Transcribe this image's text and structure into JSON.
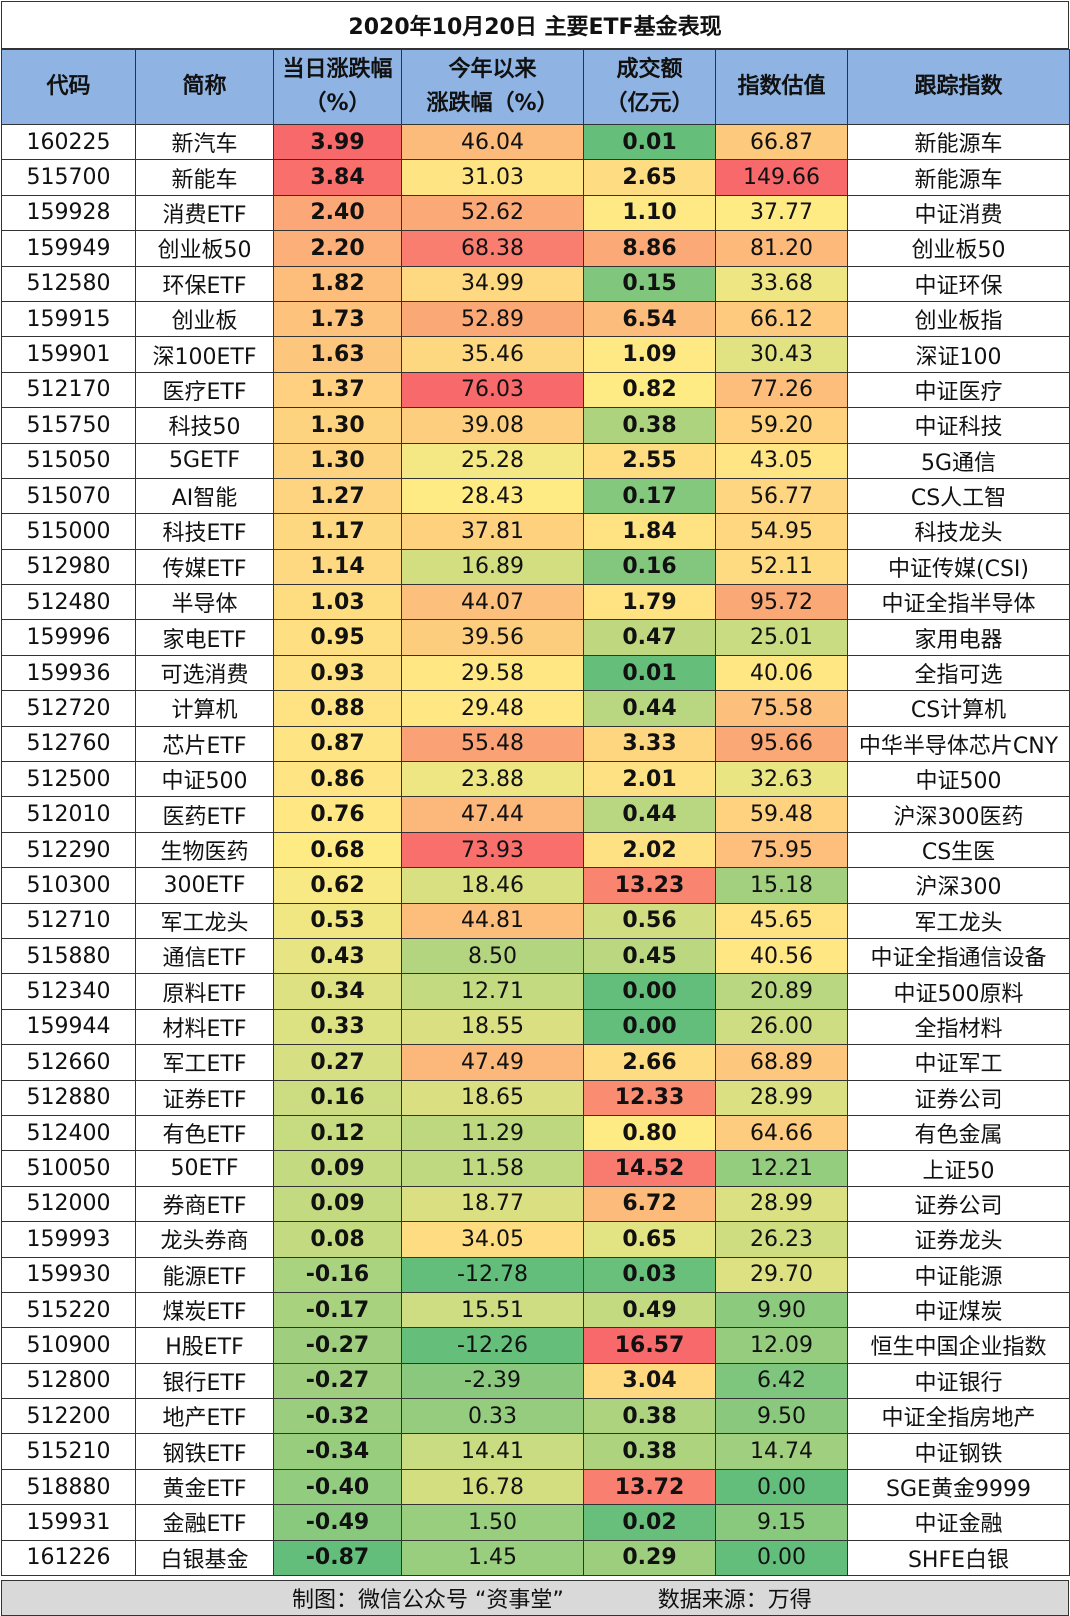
{
  "title": "2020年10月20日 主要ETF基金表现",
  "headers": [
    "代码",
    "简称",
    {
      "l1": "当日涨跌幅",
      "l2": "（%）"
    },
    {
      "l1": "今年以来",
      "l2": "涨跌幅（%）"
    },
    {
      "l1": "成交额",
      "l2": "（亿元）"
    },
    "指数估值",
    "跟踪指数"
  ],
  "heat_colors": {
    "low": "#63be7b",
    "mid": "#ffeb84",
    "high": "#f8696b"
  },
  "header_color": "#8fb4e3",
  "rows": [
    [
      "160225",
      "新汽车",
      "3.99",
      "46.04",
      "0.01",
      "66.87",
      "新能源车"
    ],
    [
      "515700",
      "新能车",
      "3.84",
      "31.03",
      "2.65",
      "149.66",
      "新能源车"
    ],
    [
      "159928",
      "消费ETF",
      "2.40",
      "52.62",
      "1.10",
      "37.77",
      "中证消费"
    ],
    [
      "159949",
      "创业板50",
      "2.20",
      "68.38",
      "8.86",
      "81.20",
      "创业板50"
    ],
    [
      "512580",
      "环保ETF",
      "1.82",
      "34.99",
      "0.15",
      "33.68",
      "中证环保"
    ],
    [
      "159915",
      "创业板",
      "1.73",
      "52.89",
      "6.54",
      "66.12",
      "创业板指"
    ],
    [
      "159901",
      "深100ETF",
      "1.63",
      "35.46",
      "1.09",
      "30.43",
      "深证100"
    ],
    [
      "512170",
      "医疗ETF",
      "1.37",
      "76.03",
      "0.82",
      "77.26",
      "中证医疗"
    ],
    [
      "515750",
      "科技50",
      "1.30",
      "39.08",
      "0.38",
      "59.20",
      "中证科技"
    ],
    [
      "515050",
      "5GETF",
      "1.30",
      "25.28",
      "2.55",
      "43.05",
      "5G通信"
    ],
    [
      "515070",
      "AI智能",
      "1.27",
      "28.43",
      "0.17",
      "56.77",
      "CS人工智"
    ],
    [
      "515000",
      "科技ETF",
      "1.17",
      "37.81",
      "1.84",
      "54.95",
      "科技龙头"
    ],
    [
      "512980",
      "传媒ETF",
      "1.14",
      "16.89",
      "0.16",
      "52.11",
      "中证传媒(CSI)"
    ],
    [
      "512480",
      "半导体",
      "1.03",
      "44.07",
      "1.79",
      "95.72",
      "中证全指半导体"
    ],
    [
      "159996",
      "家电ETF",
      "0.95",
      "39.56",
      "0.47",
      "25.01",
      "家用电器"
    ],
    [
      "159936",
      "可选消费",
      "0.93",
      "29.58",
      "0.01",
      "40.06",
      "全指可选"
    ],
    [
      "512720",
      "计算机",
      "0.88",
      "29.48",
      "0.44",
      "75.58",
      "CS计算机"
    ],
    [
      "512760",
      "芯片ETF",
      "0.87",
      "55.48",
      "3.33",
      "95.66",
      "中华半导体芯片CNY"
    ],
    [
      "512500",
      "中证500",
      "0.86",
      "23.88",
      "2.01",
      "32.63",
      "中证500"
    ],
    [
      "512010",
      "医药ETF",
      "0.76",
      "47.44",
      "0.44",
      "59.48",
      "沪深300医药"
    ],
    [
      "512290",
      "生物医药",
      "0.68",
      "73.93",
      "2.02",
      "75.95",
      "CS生医"
    ],
    [
      "510300",
      "300ETF",
      "0.62",
      "18.46",
      "13.23",
      "15.18",
      "沪深300"
    ],
    [
      "512710",
      "军工龙头",
      "0.53",
      "44.81",
      "0.56",
      "45.65",
      "军工龙头"
    ],
    [
      "515880",
      "通信ETF",
      "0.43",
      "8.50",
      "0.45",
      "40.56",
      "中证全指通信设备"
    ],
    [
      "512340",
      "原料ETF",
      "0.34",
      "12.71",
      "0.00",
      "20.89",
      "中证500原料"
    ],
    [
      "159944",
      "材料ETF",
      "0.33",
      "18.55",
      "0.00",
      "26.00",
      "全指材料"
    ],
    [
      "512660",
      "军工ETF",
      "0.27",
      "47.49",
      "2.66",
      "68.89",
      "中证军工"
    ],
    [
      "512880",
      "证券ETF",
      "0.16",
      "18.65",
      "12.33",
      "28.99",
      "证券公司"
    ],
    [
      "512400",
      "有色ETF",
      "0.12",
      "11.29",
      "0.80",
      "64.66",
      "有色金属"
    ],
    [
      "510050",
      "50ETF",
      "0.09",
      "11.58",
      "14.52",
      "12.21",
      "上证50"
    ],
    [
      "512000",
      "券商ETF",
      "0.09",
      "18.77",
      "6.72",
      "28.99",
      "证券公司"
    ],
    [
      "159993",
      "龙头券商",
      "0.08",
      "34.05",
      "0.65",
      "26.23",
      "证券龙头"
    ],
    [
      "159930",
      "能源ETF",
      "-0.16",
      "-12.78",
      "0.03",
      "29.70",
      "中证能源"
    ],
    [
      "515220",
      "煤炭ETF",
      "-0.17",
      "15.51",
      "0.49",
      "9.90",
      "中证煤炭"
    ],
    [
      "510900",
      "H股ETF",
      "-0.27",
      "-12.26",
      "16.57",
      "12.09",
      "恒生中国企业指数"
    ],
    [
      "512800",
      "银行ETF",
      "-0.27",
      "-2.39",
      "3.04",
      "6.42",
      "中证银行"
    ],
    [
      "512200",
      "地产ETF",
      "-0.32",
      "0.33",
      "0.38",
      "9.50",
      "中证全指房地产"
    ],
    [
      "515210",
      "钢铁ETF",
      "-0.34",
      "14.41",
      "0.38",
      "14.74",
      "中证钢铁"
    ],
    [
      "518880",
      "黄金ETF",
      "-0.40",
      "16.78",
      "13.72",
      "0.00",
      "SGE黄金9999"
    ],
    [
      "159931",
      "金融ETF",
      "-0.49",
      "1.50",
      "0.02",
      "9.15",
      "中证金融"
    ],
    [
      "161226",
      "白银基金",
      "-0.87",
      "1.45",
      "0.29",
      "0.00",
      "SHFE白银"
    ]
  ],
  "footer": {
    "credit": "制图：微信公众号 “资事堂”",
    "source": "数据来源：万得"
  }
}
